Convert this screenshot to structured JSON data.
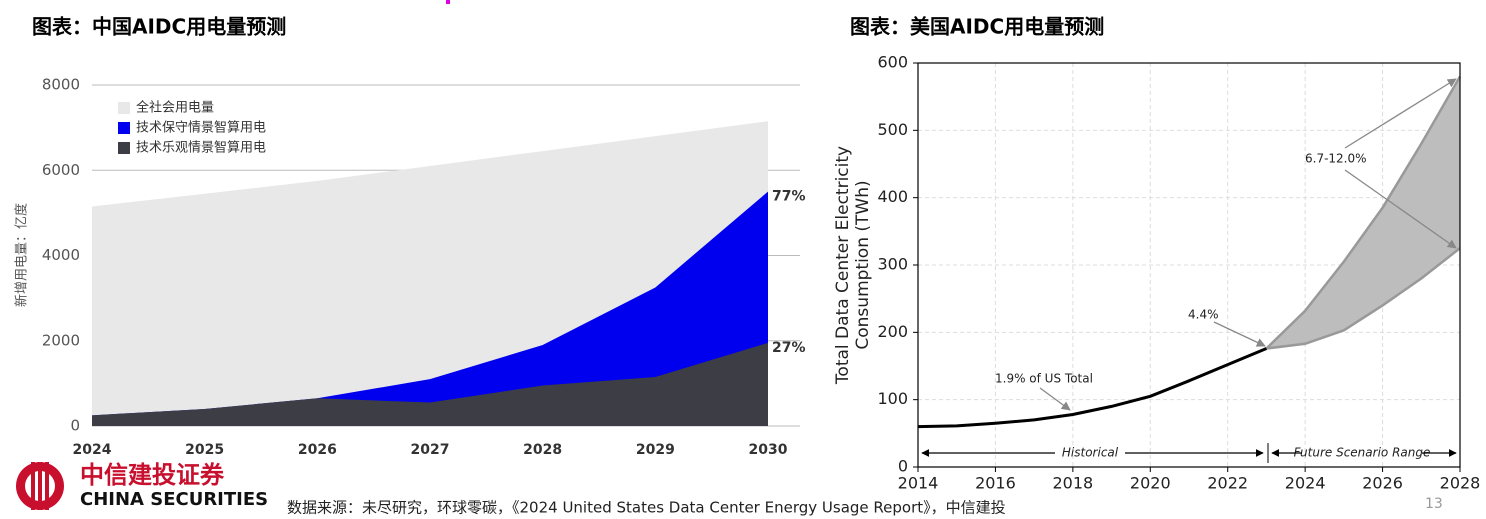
{
  "chart_data": [
    {
      "type": "area",
      "title": "图表：中国AIDC用电量预测",
      "y_label": "新增用电量：亿度",
      "categories": [
        "2024",
        "2025",
        "2026",
        "2027",
        "2028",
        "2029",
        "2030"
      ],
      "series": [
        {
          "name": "全社会用电量",
          "color": "#e8e8e8",
          "values": [
            5150,
            5450,
            5750,
            6100,
            6450,
            6800,
            7150
          ]
        },
        {
          "name": "技术保守情景智算用电",
          "color": "#0000ee",
          "values": [
            250,
            400,
            650,
            1100,
            1900,
            3250,
            5500
          ]
        },
        {
          "name": "技术乐观情景智算用电",
          "color": "#3d3d45",
          "values": [
            250,
            400,
            650,
            550,
            950,
            1150,
            1950
          ]
        }
      ],
      "ylim": [
        0,
        8000
      ],
      "yticks": [
        0,
        2000,
        4000,
        6000,
        8000
      ],
      "grid": true,
      "legend": "upper-left",
      "annotations": [
        "77%",
        "27%"
      ]
    },
    {
      "type": "line",
      "title": "图表：美国AIDC用电量预测",
      "y_label": [
        "Total Data Center Electricity",
        "Consumption (TWh)"
      ],
      "series": [
        {
          "color": "#000000",
          "x": [
            2014,
            2015,
            2016,
            2017,
            2018,
            2019,
            2020,
            2021,
            2022,
            2023
          ],
          "values": [
            60,
            61,
            65,
            70,
            78,
            90,
            105,
            128,
            152,
            176
          ]
        }
      ],
      "band": {
        "color": "#bdbdbd",
        "x": [
          2023,
          2024,
          2025,
          2026,
          2027,
          2028
        ],
        "low": [
          176,
          183,
          203,
          240,
          280,
          325
        ],
        "high": [
          176,
          232,
          305,
          385,
          480,
          580
        ]
      },
      "xlim": [
        2014,
        2028
      ],
      "xticks": [
        2014,
        2016,
        2018,
        2020,
        2022,
        2024,
        2026,
        2028
      ],
      "ylim": [
        0,
        600
      ],
      "yticks": [
        0,
        100,
        200,
        300,
        400,
        500,
        600
      ],
      "grid": true,
      "annotations": [
        "1.9% of US Total",
        "4.4%",
        "6.7-12.0%",
        "Historical",
        "Future Scenario Range"
      ]
    }
  ],
  "footer": {
    "logo_cn": "中信建投证券",
    "logo_en": "CHINA SECURITIES",
    "source": "数据来源：未尽研究，环球零碳，《2024  United States Data Center Energy Usage Report》，中信建投",
    "page": "13"
  }
}
